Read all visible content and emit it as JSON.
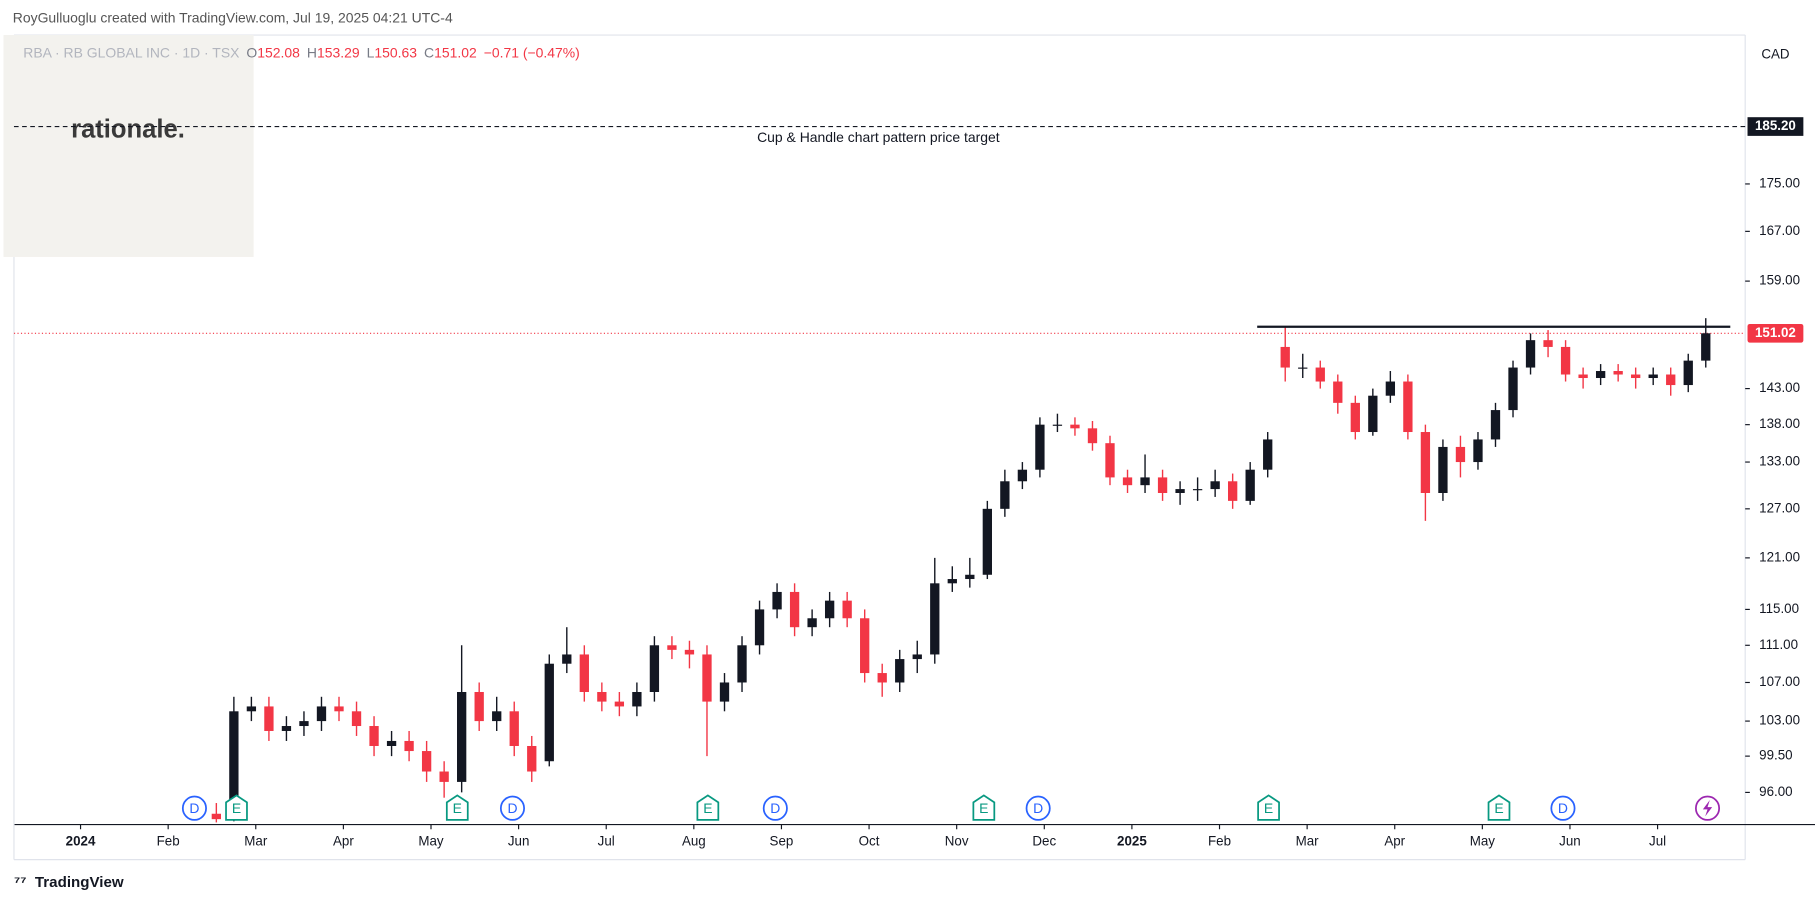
{
  "header": {
    "watermark": "RoyGulluoglu created with TradingView.com, Jul 19, 2025 04:21 UTC-4",
    "symbol": "RBA · RB GLOBAL INC · 1D · TSX",
    "o_label": "O",
    "open": "152.08",
    "h_label": "H",
    "high": "153.29",
    "l_label": "L",
    "low": "150.63",
    "c_label": "C",
    "close": "151.02",
    "change": "−0.71 (−0.47%)",
    "logo": "rationale.",
    "currency": "CAD",
    "footer": "TradingView"
  },
  "chart_data": {
    "type": "candlestick",
    "log_scale": true,
    "up_color": "#131722",
    "down_color": "#f23645",
    "xlim": [
      -0.76,
      19.0
    ],
    "ylim": [
      93,
      202.7
    ],
    "xticks": [
      {
        "value": 0,
        "label": "2024"
      },
      {
        "value": 1,
        "label": "Feb"
      },
      {
        "value": 2,
        "label": "Mar"
      },
      {
        "value": 3,
        "label": "Apr"
      },
      {
        "value": 4,
        "label": "May"
      },
      {
        "value": 5,
        "label": "Jun"
      },
      {
        "value": 6,
        "label": "Jul"
      },
      {
        "value": 7,
        "label": "Aug"
      },
      {
        "value": 8,
        "label": "Sep"
      },
      {
        "value": 9,
        "label": "Oct"
      },
      {
        "value": 10,
        "label": "Nov"
      },
      {
        "value": 11,
        "label": "Dec"
      },
      {
        "value": 12,
        "label": "2025"
      },
      {
        "value": 13,
        "label": "Feb"
      },
      {
        "value": 14,
        "label": "Mar"
      },
      {
        "value": 15,
        "label": "Apr"
      },
      {
        "value": 16,
        "label": "May"
      },
      {
        "value": 17,
        "label": "Jun"
      },
      {
        "value": 18,
        "label": "Jul"
      }
    ],
    "yticks": [
      {
        "value": 96,
        "label": "96.00"
      },
      {
        "value": 99.5,
        "label": "99.50"
      },
      {
        "value": 103,
        "label": "103.00"
      },
      {
        "value": 107,
        "label": "107.00"
      },
      {
        "value": 111,
        "label": "111.00"
      },
      {
        "value": 115,
        "label": "115.00"
      },
      {
        "value": 121,
        "label": "121.00"
      },
      {
        "value": 127,
        "label": "127.00"
      },
      {
        "value": 133,
        "label": "133.00"
      },
      {
        "value": 138,
        "label": "138.00"
      },
      {
        "value": 143,
        "label": "143.00"
      },
      {
        "value": 159,
        "label": "159.00"
      },
      {
        "value": 167,
        "label": "167.00"
      },
      {
        "value": 175,
        "label": "175.00"
      }
    ],
    "x": [
      1.55,
      1.75,
      1.95,
      2.15,
      2.35,
      2.55,
      2.75,
      2.95,
      3.15,
      3.35,
      3.55,
      3.75,
      3.95,
      4.15,
      4.35,
      4.55,
      4.75,
      4.95,
      5.15,
      5.35,
      5.55,
      5.75,
      5.95,
      6.15,
      6.35,
      6.55,
      6.75,
      6.95,
      7.15,
      7.35,
      7.55,
      7.75,
      7.95,
      8.15,
      8.35,
      8.55,
      8.75,
      8.95,
      9.15,
      9.35,
      9.55,
      9.75,
      9.95,
      10.15,
      10.35,
      10.55,
      10.75,
      10.95,
      11.15,
      11.35,
      11.55,
      11.75,
      11.95,
      12.15,
      12.35,
      12.55,
      12.75,
      12.95,
      13.15,
      13.35,
      13.55,
      13.75,
      13.95,
      14.15,
      14.35,
      14.55,
      14.75,
      14.95,
      15.15,
      15.35,
      15.55,
      15.75,
      15.95,
      16.15,
      16.35,
      16.55,
      16.75,
      16.95,
      17.15,
      17.35,
      17.55,
      17.75,
      17.95,
      18.15,
      18.35,
      18.55
    ],
    "open": [
      94,
      93.5,
      104,
      104.5,
      102,
      102.5,
      103,
      104.5,
      104,
      102.5,
      100.5,
      101,
      100,
      98,
      97,
      106,
      103,
      104,
      100.5,
      99,
      109,
      110,
      106,
      105,
      104.5,
      106,
      111,
      110.5,
      110,
      105,
      107,
      111,
      115,
      117,
      113,
      114,
      116,
      114,
      108,
      107,
      109.5,
      110,
      118,
      118.5,
      119,
      127,
      130.5,
      132,
      138,
      138,
      137.5,
      135.5,
      131,
      130,
      131,
      129,
      129.5,
      129.5,
      130.5,
      128,
      132,
      149,
      146,
      146,
      144,
      141,
      137,
      142,
      144,
      137,
      129,
      135,
      133,
      136,
      140,
      146,
      150,
      149,
      145,
      144.5,
      145.5,
      145,
      144.5,
      145,
      143.5,
      147
    ],
    "high": [
      95,
      105.5,
      105.5,
      105.5,
      103.5,
      104,
      105.5,
      105.5,
      105,
      103.5,
      102,
      102,
      101,
      99,
      111,
      107,
      105.5,
      105,
      101.5,
      110,
      113,
      111,
      107,
      106,
      107,
      112,
      112,
      111.5,
      111,
      108,
      112,
      116,
      118,
      118,
      115,
      117,
      117,
      115,
      109,
      110.5,
      111.5,
      121,
      120,
      121,
      128,
      132,
      133,
      139,
      139.5,
      139,
      138.5,
      136.5,
      132,
      134,
      132,
      130.5,
      131,
      132,
      131.5,
      133,
      137,
      152,
      148,
      147,
      145,
      142,
      143,
      145.5,
      145,
      138,
      136,
      136.5,
      137,
      141,
      147,
      151,
      151.5,
      150,
      146,
      146.5,
      146.5,
      146,
      146,
      146,
      148,
      153.29
    ],
    "low": [
      93.2,
      93.3,
      103,
      101,
      101,
      101.5,
      102,
      103,
      101.5,
      99.5,
      99.5,
      99,
      97,
      95.5,
      96,
      102,
      102,
      99.5,
      97,
      98.5,
      108,
      105,
      104,
      103.5,
      103.5,
      105,
      109.5,
      108.5,
      99.5,
      104,
      106,
      110,
      114,
      112,
      112,
      113,
      113,
      107,
      105.5,
      106,
      108,
      109,
      117,
      117.5,
      118.5,
      126,
      129.5,
      131,
      137,
      136.5,
      134.5,
      130,
      129,
      129,
      128,
      127.5,
      128,
      128.5,
      127,
      127.5,
      131,
      144,
      144.5,
      143,
      139.5,
      136,
      136.5,
      141,
      136,
      125.5,
      128,
      131,
      132,
      135,
      139,
      145,
      147.5,
      144,
      143,
      143.5,
      144,
      143,
      143.5,
      142,
      142.5,
      146
    ],
    "close": [
      93.5,
      104,
      104.5,
      102,
      102.5,
      103,
      104.5,
      104,
      102.5,
      100.5,
      101,
      100,
      98,
      97,
      106,
      103,
      104,
      100.5,
      98,
      109,
      110,
      106,
      105,
      104.5,
      106,
      111,
      110.5,
      110,
      105,
      107,
      111,
      115,
      117,
      113,
      114,
      116,
      114,
      108,
      107,
      109.5,
      110,
      118,
      118.5,
      119,
      127,
      130.5,
      132,
      138,
      138,
      137.5,
      135.5,
      131,
      130,
      131,
      129,
      129.5,
      129.5,
      130.5,
      128,
      132,
      136,
      146,
      146,
      144,
      141,
      137,
      142,
      144,
      137,
      129,
      135,
      133,
      136,
      140,
      146,
      150,
      149,
      145,
      144.5,
      145.5,
      145,
      144.5,
      145,
      143.5,
      147,
      151.02
    ],
    "target": {
      "value": 185.2,
      "label": "185.20",
      "text": "Cup & Handle chart pattern price target"
    },
    "last_price": {
      "value": 151.02,
      "label": "151.02"
    },
    "resistance": {
      "value": 152,
      "x": [
        13.43,
        18.83
      ]
    },
    "events": [
      {
        "x": 1.3,
        "label": "D"
      },
      {
        "x": 1.78,
        "label": "E"
      },
      {
        "x": 4.3,
        "label": "E"
      },
      {
        "x": 4.93,
        "label": "D"
      },
      {
        "x": 7.16,
        "label": "E"
      },
      {
        "x": 7.93,
        "label": "D"
      },
      {
        "x": 10.31,
        "label": "E"
      },
      {
        "x": 10.93,
        "label": "D"
      },
      {
        "x": 13.56,
        "label": "E"
      },
      {
        "x": 16.19,
        "label": "E"
      },
      {
        "x": 16.92,
        "label": "D"
      },
      {
        "x": 18.57
      }
    ]
  }
}
